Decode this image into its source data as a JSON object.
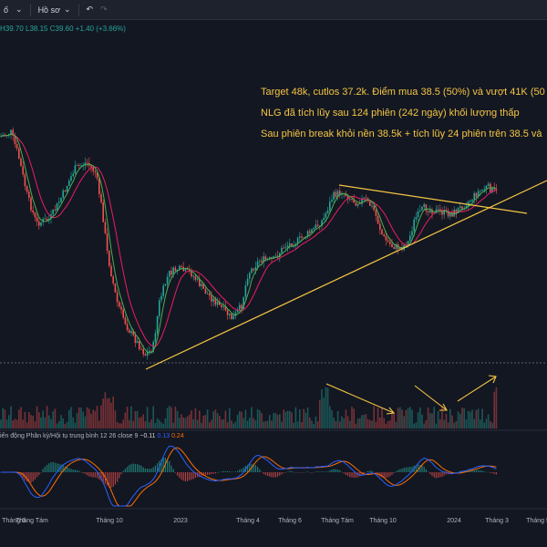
{
  "toolbar": {
    "left_text": "ố",
    "profile_label": "Hồ sơ",
    "undo_icon": "undo-icon",
    "redo_icon": "redo-icon"
  },
  "ohlc": {
    "high": "H39.70",
    "low": "L38.15",
    "close": "C39.60",
    "change": "+1.40 (+3.66%)"
  },
  "annotations": [
    "Target 48k, cutlos 37.2k. Điểm mua 38.5 (50%) và vượt 41K (50",
    "NLG đã tích lũy sau 124 phiên (242 ngày) khối lượng thấp",
    "Sau phiên break khỏi nền 38.5k + tích lũy 24 phiên trên 38.5 và"
  ],
  "indicator": {
    "title": "iến động Phân kỳ/Hội tụ trung bình",
    "params": "12 26 close 9",
    "val1": "−0.11",
    "val2": "0.13",
    "val3": "0.24"
  },
  "x_axis": [
    "Tháng 6",
    "Tháng Tám",
    "Tháng 10",
    "2023",
    "Tháng 4",
    "Tháng 6",
    "Tháng Tám",
    "Tháng 10",
    "2024",
    "Tháng 3",
    "Tháng 5"
  ],
  "colors": {
    "background": "#131722",
    "up": "#26a69a",
    "down": "#ef5350",
    "ma_fast": "#4caf50",
    "ma_slow": "#e91e63",
    "drawing": "#f5c542",
    "macd": "#2962ff",
    "signal": "#ff6d00"
  }
}
